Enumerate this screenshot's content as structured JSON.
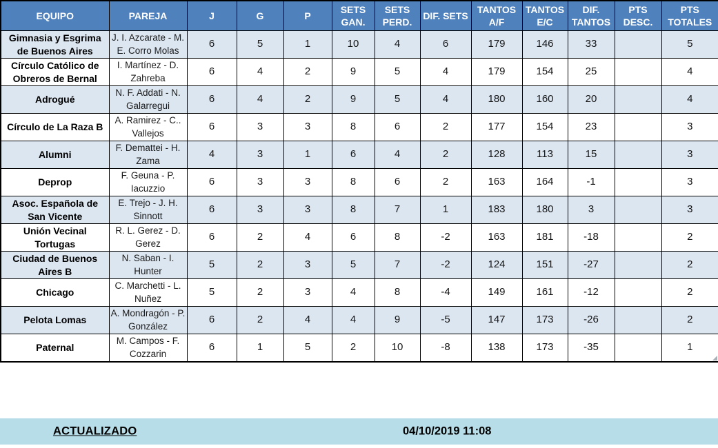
{
  "colors": {
    "header_bg": "#4F81BD",
    "row_alt_bg": "#DCE6F1",
    "row_bg": "#FFFFFF",
    "footer_bg": "#B7DEE8",
    "border": "#000000",
    "header_text": "#FFFFFF"
  },
  "table": {
    "columns": [
      {
        "key": "equipo",
        "label": "EQUIPO"
      },
      {
        "key": "pareja",
        "label": "PAREJA"
      },
      {
        "key": "j",
        "label": "J"
      },
      {
        "key": "g",
        "label": "G"
      },
      {
        "key": "p",
        "label": "P"
      },
      {
        "key": "sets-gan",
        "label": "SETS GAN."
      },
      {
        "key": "sets-perd",
        "label": "SETS PERD."
      },
      {
        "key": "dif-sets",
        "label": "DIF. SETS"
      },
      {
        "key": "tantos-af",
        "label": "TANTOS A/F"
      },
      {
        "key": "tantos-ec",
        "label": "TANTOS E/C"
      },
      {
        "key": "dif-tantos",
        "label": "DIF. TANTOS"
      },
      {
        "key": "pts-desc",
        "label": "PTS DESC."
      },
      {
        "key": "pts-totales",
        "label": "PTS TOTALES"
      }
    ],
    "rows": [
      {
        "cells": [
          "Gimnasia y Esgrima de Buenos Aires",
          "J. I. Azcarate - M. E. Corro Molas",
          "6",
          "5",
          "1",
          "10",
          "4",
          "6",
          "179",
          "146",
          "33",
          "",
          "5"
        ]
      },
      {
        "cells": [
          "Círculo Católico de Obreros de Bernal",
          "I. Martínez - D. Zahreba",
          "6",
          "4",
          "2",
          "9",
          "5",
          "4",
          "179",
          "154",
          "25",
          "",
          "4"
        ]
      },
      {
        "cells": [
          "Adrogué",
          "N. F. Addati - N. Galarregui",
          "6",
          "4",
          "2",
          "9",
          "5",
          "4",
          "180",
          "160",
          "20",
          "",
          "4"
        ]
      },
      {
        "cells": [
          "Círculo de La Raza B",
          "A. Ramirez - C.. Vallejos",
          "6",
          "3",
          "3",
          "8",
          "6",
          "2",
          "177",
          "154",
          "23",
          "",
          "3"
        ]
      },
      {
        "cells": [
          "Alumni",
          "F. Demattei - H. Zama",
          "4",
          "3",
          "1",
          "6",
          "4",
          "2",
          "128",
          "113",
          "15",
          "",
          "3"
        ]
      },
      {
        "cells": [
          "Deprop",
          "F. Geuna - P. Iacuzzio",
          "6",
          "3",
          "3",
          "8",
          "6",
          "2",
          "163",
          "164",
          "-1",
          "",
          "3"
        ]
      },
      {
        "cells": [
          "Asoc. Española de San Vicente",
          "E. Trejo - J. H. Sinnott",
          "6",
          "3",
          "3",
          "8",
          "7",
          "1",
          "183",
          "180",
          "3",
          "",
          "3"
        ]
      },
      {
        "cells": [
          "Unión Vecinal Tortugas",
          "R. L. Gerez - D. Gerez",
          "6",
          "2",
          "4",
          "6",
          "8",
          "-2",
          "163",
          "181",
          "-18",
          "",
          "2"
        ]
      },
      {
        "cells": [
          "Ciudad de Buenos Aires B",
          "N. Saban - I. Hunter",
          "5",
          "2",
          "3",
          "5",
          "7",
          "-2",
          "124",
          "151",
          "-27",
          "",
          "2"
        ]
      },
      {
        "cells": [
          "Chicago",
          "C. Marchetti - L. Nuñez",
          "5",
          "2",
          "3",
          "4",
          "8",
          "-4",
          "149",
          "161",
          "-12",
          "",
          "2"
        ]
      },
      {
        "cells": [
          "Pelota Lomas",
          "A. Mondragón - P. González",
          "6",
          "2",
          "4",
          "4",
          "9",
          "-5",
          "147",
          "173",
          "-26",
          "",
          "2"
        ]
      },
      {
        "cells": [
          "Paternal",
          "M. Campos - F. Cozzarin",
          "6",
          "1",
          "5",
          "2",
          "10",
          "-8",
          "138",
          "173",
          "-35",
          "",
          "1"
        ]
      }
    ]
  },
  "footer": {
    "updated_label": "ACTUALIZADO",
    "updated_value": "04/10/2019 11:08"
  }
}
